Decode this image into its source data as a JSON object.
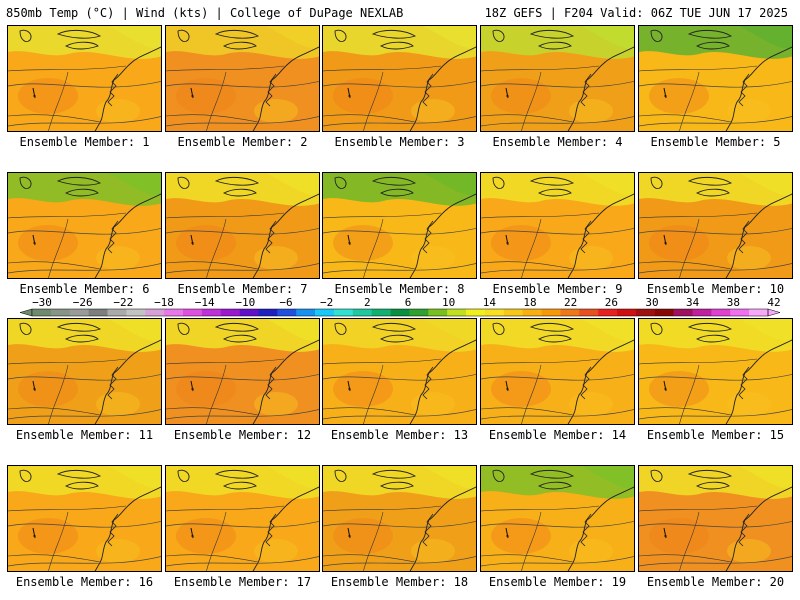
{
  "header": {
    "left": "850mb Temp (°C) | Wind (kts) | College of DuPage NEXLAB",
    "right": "18Z GEFS | F204 Valid: 06Z TUE JUN 17 2025"
  },
  "colorbar": {
    "tick_labels": [
      "−30",
      "−26",
      "−22",
      "−18",
      "−14",
      "−10",
      "−6",
      "−2",
      "2",
      "6",
      "10",
      "14",
      "18",
      "22",
      "26",
      "30",
      "34",
      "38",
      "42"
    ],
    "colors": [
      "#6e8b6e",
      "#889488",
      "#9a9a9a",
      "#7e7e7e",
      "#aaaaaa",
      "#c3c3c3",
      "#d7a0d7",
      "#e878e8",
      "#e050e0",
      "#c030d8",
      "#9a18d0",
      "#6010c8",
      "#2020c0",
      "#2050e0",
      "#1890f0",
      "#18c8f8",
      "#30e0d0",
      "#20c8a0",
      "#10b070",
      "#089040",
      "#30a030",
      "#78c020",
      "#c0e020",
      "#f0f020",
      "#f8e020",
      "#f8c818",
      "#f8b010",
      "#f89808",
      "#f07818",
      "#e85020",
      "#e82020",
      "#d01010",
      "#a01010",
      "#880808",
      "#a01060",
      "#c020a0",
      "#e040d0",
      "#f070f0",
      "#f8a8f8"
    ]
  },
  "panels": [
    {
      "label": "Ensemble Member: 1",
      "base": "#f8a818",
      "accent": "#e8e030"
    },
    {
      "label": "Ensemble Member: 2",
      "base": "#f09020",
      "accent": "#f0d028"
    },
    {
      "label": "Ensemble Member: 3",
      "base": "#f09a18",
      "accent": "#e8e030"
    },
    {
      "label": "Ensemble Member: 4",
      "base": "#f0a018",
      "accent": "#c0dc30"
    },
    {
      "label": "Ensemble Member: 5",
      "base": "#f8b818",
      "accent": "#60b030"
    },
    {
      "label": "Ensemble Member: 6",
      "base": "#f8a818",
      "accent": "#80c028"
    },
    {
      "label": "Ensemble Member: 7",
      "base": "#f09a18",
      "accent": "#f0e028"
    },
    {
      "label": "Ensemble Member: 8",
      "base": "#f8b818",
      "accent": "#70b828"
    },
    {
      "label": "Ensemble Member: 9",
      "base": "#f8a818",
      "accent": "#f0e028"
    },
    {
      "label": "Ensemble Member: 10",
      "base": "#f09a18",
      "accent": "#f0e028"
    },
    {
      "label": "Ensemble Member: 11",
      "base": "#f0a018",
      "accent": "#f0e028"
    },
    {
      "label": "Ensemble Member: 12",
      "base": "#f09020",
      "accent": "#f0e028"
    },
    {
      "label": "Ensemble Member: 13",
      "base": "#f8b018",
      "accent": "#f0d828"
    },
    {
      "label": "Ensemble Member: 14",
      "base": "#f8b018",
      "accent": "#f0e028"
    },
    {
      "label": "Ensemble Member: 15",
      "base": "#f8b818",
      "accent": "#f0e028"
    },
    {
      "label": "Ensemble Member: 16",
      "base": "#f8a818",
      "accent": "#f0e028"
    },
    {
      "label": "Ensemble Member: 17",
      "base": "#f8a818",
      "accent": "#f0e028"
    },
    {
      "label": "Ensemble Member: 18",
      "base": "#f0a018",
      "accent": "#f0e028"
    },
    {
      "label": "Ensemble Member: 19",
      "base": "#f8b018",
      "accent": "#80c028"
    },
    {
      "label": "Ensemble Member: 20",
      "base": "#f09020",
      "accent": "#f0e028"
    }
  ]
}
